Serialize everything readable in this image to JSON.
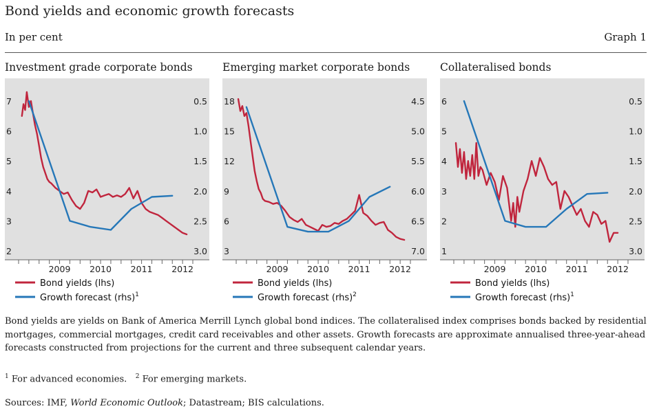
{
  "header": {
    "title": "Bond yields and economic growth forecasts",
    "subtitle": "In per cent",
    "graph_label": "Graph 1"
  },
  "colors": {
    "yield": "#c0253d",
    "forecast": "#2577b8",
    "panel_bg": "#e0e0e0"
  },
  "chart_data": [
    {
      "type": "line",
      "title": "Investment grade corporate bonds",
      "x_ticks": [
        "2009",
        "2010",
        "2011",
        "2012"
      ],
      "x_range": [
        2008.5,
        2012.75
      ],
      "y_left": {
        "range": [
          2,
          7.5
        ],
        "ticks": [
          "2",
          "3",
          "4",
          "5",
          "6",
          "7"
        ]
      },
      "y_right": {
        "range": [
          3.0,
          0.25
        ],
        "inverted": true,
        "ticks": [
          "0.5",
          "1.0",
          "1.5",
          "2.0",
          "2.5",
          "3.0"
        ]
      },
      "legend": [
        {
          "label": "Bond yields (lhs)",
          "sup": ""
        },
        {
          "label": "Growth forecast (rhs)",
          "sup": "1"
        }
      ],
      "series": [
        {
          "name": "Bond yields (lhs)",
          "axis": "left",
          "x": [
            2008.58,
            2008.62,
            2008.66,
            2008.7,
            2008.75,
            2008.8,
            2008.85,
            2008.9,
            2008.95,
            2009.0,
            2009.05,
            2009.1,
            2009.15,
            2009.2,
            2009.25,
            2009.3,
            2009.4,
            2009.5,
            2009.6,
            2009.7,
            2009.8,
            2009.9,
            2010.0,
            2010.1,
            2010.2,
            2010.3,
            2010.4,
            2010.5,
            2010.6,
            2010.7,
            2010.8,
            2010.9,
            2011.0,
            2011.1,
            2011.2,
            2011.3,
            2011.4,
            2011.5,
            2011.6,
            2011.7,
            2011.8,
            2011.9,
            2012.0,
            2012.1,
            2012.2,
            2012.3,
            2012.4,
            2012.5,
            2012.6
          ],
          "values": [
            6.5,
            6.9,
            6.7,
            7.3,
            6.8,
            7.0,
            6.6,
            6.2,
            5.9,
            5.5,
            5.1,
            4.8,
            4.6,
            4.4,
            4.3,
            4.25,
            4.1,
            4.0,
            3.9,
            3.95,
            3.7,
            3.5,
            3.4,
            3.6,
            4.0,
            3.95,
            4.05,
            3.8,
            3.85,
            3.9,
            3.8,
            3.85,
            3.8,
            3.9,
            4.1,
            3.75,
            4.0,
            3.6,
            3.4,
            3.3,
            3.25,
            3.2,
            3.1,
            3.0,
            2.9,
            2.8,
            2.7,
            2.6,
            2.55
          ]
        },
        {
          "name": "Growth forecast (rhs)",
          "axis": "right",
          "x": [
            2008.75,
            2009.75,
            2010.25,
            2010.75,
            2011.25,
            2011.75,
            2012.25
          ],
          "values": [
            0.5,
            2.5,
            2.6,
            2.65,
            2.3,
            2.1,
            2.08
          ]
        }
      ]
    },
    {
      "type": "line",
      "title": "Emerging market corporate bonds",
      "x_ticks": [
        "2009",
        "2010",
        "2011",
        "2012"
      ],
      "x_range": [
        2008.5,
        2012.75
      ],
      "y_left": {
        "range": [
          3,
          19.5
        ],
        "ticks": [
          "3",
          "6",
          "9",
          "12",
          "15",
          "18"
        ]
      },
      "y_right": {
        "range": [
          7.0,
          4.25
        ],
        "inverted": true,
        "ticks": [
          "4.5",
          "5.0",
          "5.5",
          "6.0",
          "6.5",
          "7.0"
        ]
      },
      "legend": [
        {
          "label": "Bond yields (lhs)",
          "sup": ""
        },
        {
          "label": "Growth forecast (rhs)",
          "sup": "2"
        }
      ],
      "series": [
        {
          "name": "Bond yields (lhs)",
          "axis": "left",
          "x": [
            2008.55,
            2008.6,
            2008.65,
            2008.7,
            2008.75,
            2008.8,
            2008.85,
            2008.9,
            2008.95,
            2009.0,
            2009.05,
            2009.1,
            2009.15,
            2009.2,
            2009.3,
            2009.4,
            2009.5,
            2009.6,
            2009.7,
            2009.8,
            2009.9,
            2010.0,
            2010.1,
            2010.2,
            2010.3,
            2010.4,
            2010.5,
            2010.6,
            2010.7,
            2010.8,
            2010.9,
            2011.0,
            2011.1,
            2011.2,
            2011.3,
            2011.4,
            2011.5,
            2011.6,
            2011.7,
            2011.8,
            2011.9,
            2012.0,
            2012.1,
            2012.2,
            2012.3,
            2012.4,
            2012.5,
            2012.6
          ],
          "values": [
            18.2,
            17.0,
            17.5,
            16.5,
            16.8,
            15.5,
            14.0,
            12.5,
            11.0,
            10.0,
            9.2,
            8.8,
            8.2,
            8.0,
            7.9,
            7.7,
            7.8,
            7.5,
            7.0,
            6.4,
            6.1,
            5.9,
            6.2,
            5.6,
            5.4,
            5.2,
            5.0,
            5.6,
            5.4,
            5.5,
            5.8,
            5.7,
            6.0,
            6.2,
            6.6,
            7.0,
            8.6,
            6.8,
            6.5,
            6.0,
            5.6,
            5.8,
            5.9,
            5.1,
            4.8,
            4.4,
            4.2,
            4.1
          ]
        },
        {
          "name": "Growth forecast (rhs)",
          "axis": "right",
          "x": [
            2008.75,
            2009.75,
            2010.25,
            2010.75,
            2011.25,
            2011.75,
            2012.25
          ],
          "values": [
            4.6,
            6.6,
            6.68,
            6.68,
            6.5,
            6.1,
            5.93
          ]
        }
      ]
    },
    {
      "type": "line",
      "title": "Collateralised bonds",
      "x_ticks": [
        "2009",
        "2010",
        "2011",
        "2012"
      ],
      "x_range": [
        2008.5,
        2012.75
      ],
      "y_left": {
        "range": [
          1,
          6.5
        ],
        "ticks": [
          "1",
          "2",
          "3",
          "4",
          "5",
          "6"
        ]
      },
      "y_right": {
        "range": [
          3.0,
          0.25
        ],
        "inverted": true,
        "ticks": [
          "0.5",
          "1.0",
          "1.5",
          "2.0",
          "2.5",
          "3.0"
        ]
      },
      "legend": [
        {
          "label": "Bond yields (lhs)",
          "sup": ""
        },
        {
          "label": "Growth forecast (rhs)",
          "sup": "1"
        }
      ],
      "series": [
        {
          "name": "Bond yields (lhs)",
          "axis": "left",
          "x": [
            2008.55,
            2008.6,
            2008.65,
            2008.7,
            2008.75,
            2008.8,
            2008.85,
            2008.9,
            2008.95,
            2009.0,
            2009.05,
            2009.1,
            2009.15,
            2009.2,
            2009.3,
            2009.4,
            2009.5,
            2009.6,
            2009.7,
            2009.8,
            2009.9,
            2009.95,
            2010.0,
            2010.05,
            2010.1,
            2010.2,
            2010.3,
            2010.4,
            2010.5,
            2010.6,
            2010.7,
            2010.8,
            2010.9,
            2011.0,
            2011.1,
            2011.2,
            2011.3,
            2011.4,
            2011.5,
            2011.6,
            2011.7,
            2011.8,
            2011.9,
            2012.0,
            2012.1,
            2012.2,
            2012.3,
            2012.4,
            2012.5
          ],
          "values": [
            4.6,
            3.8,
            4.4,
            3.6,
            4.3,
            3.4,
            4.0,
            3.5,
            4.2,
            3.4,
            4.6,
            3.5,
            3.8,
            3.7,
            3.2,
            3.6,
            3.3,
            2.7,
            3.5,
            3.1,
            2.0,
            2.6,
            1.8,
            2.8,
            2.3,
            3.0,
            3.4,
            4.0,
            3.5,
            4.1,
            3.8,
            3.4,
            3.2,
            3.3,
            2.4,
            3.0,
            2.8,
            2.5,
            2.2,
            2.4,
            2.0,
            1.8,
            2.3,
            2.2,
            1.9,
            2.0,
            1.3,
            1.6,
            1.6
          ]
        },
        {
          "name": "Growth forecast (rhs)",
          "axis": "right",
          "x": [
            2008.75,
            2009.75,
            2010.25,
            2010.75,
            2011.25,
            2011.75,
            2012.25
          ],
          "values": [
            0.5,
            2.5,
            2.6,
            2.6,
            2.3,
            2.05,
            2.03
          ]
        }
      ]
    }
  ],
  "notes": {
    "body": "Bond yields are yields on Bank of America Merrill Lynch global bond indices. The collateralised index comprises bonds backed by residential mortgages, commercial mortgages, credit card receivables and other assets. Growth forecasts are approximate annualised three-year-ahead forecasts constructed from projections for the current and three subsequent calendar years.",
    "fn1_mark": "1",
    "fn1_text": "For advanced economies.",
    "fn2_mark": "2",
    "fn2_text": "For emerging markets.",
    "sources_prefix": "Sources: IMF, ",
    "sources_italic": "World Economic Outlook",
    "sources_suffix": "; Datastream; BIS calculations."
  }
}
